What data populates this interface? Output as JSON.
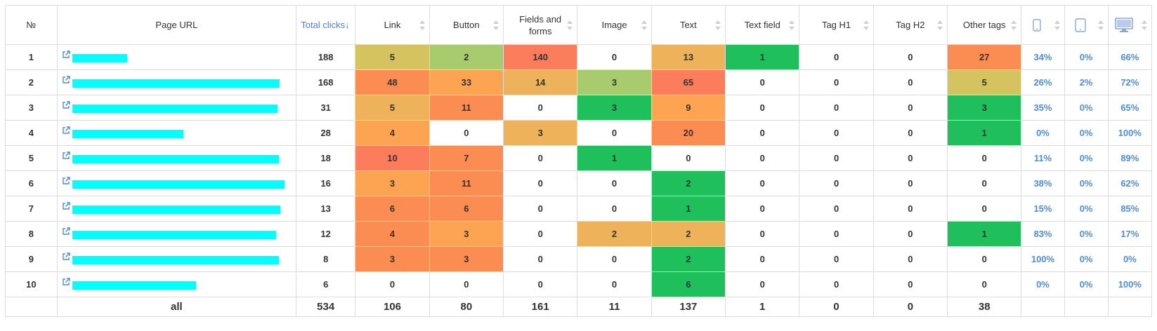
{
  "columns": [
    {
      "key": "num",
      "label": "№"
    },
    {
      "key": "url",
      "label": "Page URL"
    },
    {
      "key": "total",
      "label": "Total clicks"
    },
    {
      "key": "link",
      "label": "Link"
    },
    {
      "key": "button",
      "label": "Button"
    },
    {
      "key": "fields",
      "label": "Fields and forms"
    },
    {
      "key": "image",
      "label": "Image"
    },
    {
      "key": "text",
      "label": "Text"
    },
    {
      "key": "textfield",
      "label": "Text field"
    },
    {
      "key": "h1",
      "label": "Tag H1"
    },
    {
      "key": "h2",
      "label": "Tag H2"
    },
    {
      "key": "other",
      "label": "Other tags"
    },
    {
      "key": "mobile",
      "icon": "mobile-icon"
    },
    {
      "key": "tablet",
      "icon": "tablet-icon"
    },
    {
      "key": "desktop",
      "icon": "desktop-icon"
    }
  ],
  "sorted_by": "Total clicks",
  "sort_direction": "descending",
  "rows": [
    {
      "num": "1",
      "url_redacted": true,
      "total": "188",
      "link": "5",
      "button": "2",
      "fields": "140",
      "image": "0",
      "text": "13",
      "textfield": "1",
      "h1": "0",
      "h2": "0",
      "other": "27",
      "mobile": "34%",
      "tablet": "0%",
      "desktop": "66%",
      "colors": {
        "link": "#d4c35e",
        "button": "#a8cb6e",
        "fields": "#fc7d5c",
        "text": "#edb25a",
        "textfield": "#1fbf5c",
        "other": "#fc8d52"
      }
    },
    {
      "num": "2",
      "url_redacted": true,
      "total": "168",
      "link": "48",
      "button": "33",
      "fields": "14",
      "image": "3",
      "text": "65",
      "textfield": "0",
      "h1": "0",
      "h2": "0",
      "other": "5",
      "mobile": "26%",
      "tablet": "2%",
      "desktop": "72%",
      "colors": {
        "link": "#fc8d52",
        "button": "#fca452",
        "fields": "#edb25a",
        "image": "#a8cb6e",
        "text": "#fc7d5c",
        "other": "#d4c35e"
      }
    },
    {
      "num": "3",
      "url_redacted": true,
      "total": "31",
      "link": "5",
      "button": "11",
      "fields": "0",
      "image": "3",
      "text": "9",
      "textfield": "0",
      "h1": "0",
      "h2": "0",
      "other": "3",
      "mobile": "35%",
      "tablet": "0%",
      "desktop": "65%",
      "colors": {
        "link": "#edb25a",
        "button": "#fc8d52",
        "image": "#1fbf5c",
        "text": "#fca452",
        "other": "#1fbf5c"
      }
    },
    {
      "num": "4",
      "url_redacted": true,
      "total": "28",
      "link": "4",
      "button": "0",
      "fields": "3",
      "image": "0",
      "text": "20",
      "textfield": "0",
      "h1": "0",
      "h2": "0",
      "other": "1",
      "mobile": "0%",
      "tablet": "0%",
      "desktop": "100%",
      "colors": {
        "link": "#fca452",
        "fields": "#edb25a",
        "text": "#fc8d52",
        "other": "#1fbf5c"
      }
    },
    {
      "num": "5",
      "url_redacted": true,
      "total": "18",
      "link": "10",
      "button": "7",
      "fields": "0",
      "image": "1",
      "text": "0",
      "textfield": "0",
      "h1": "0",
      "h2": "0",
      "other": "0",
      "mobile": "11%",
      "tablet": "0%",
      "desktop": "89%",
      "colors": {
        "link": "#fc7d5c",
        "button": "#fc8d52",
        "image": "#1fbf5c"
      }
    },
    {
      "num": "6",
      "url_redacted": true,
      "total": "16",
      "link": "3",
      "button": "11",
      "fields": "0",
      "image": "0",
      "text": "2",
      "textfield": "0",
      "h1": "0",
      "h2": "0",
      "other": "0",
      "mobile": "38%",
      "tablet": "0%",
      "desktop": "62%",
      "colors": {
        "link": "#fca452",
        "button": "#fc8d52",
        "text": "#1fbf5c"
      }
    },
    {
      "num": "7",
      "url_redacted": true,
      "total": "13",
      "link": "6",
      "button": "6",
      "fields": "0",
      "image": "0",
      "text": "1",
      "textfield": "0",
      "h1": "0",
      "h2": "0",
      "other": "0",
      "mobile": "15%",
      "tablet": "0%",
      "desktop": "85%",
      "colors": {
        "link": "#fc8d52",
        "button": "#fc8d52",
        "text": "#1fbf5c"
      }
    },
    {
      "num": "8",
      "url_redacted": true,
      "total": "12",
      "link": "4",
      "button": "3",
      "fields": "0",
      "image": "2",
      "text": "2",
      "textfield": "0",
      "h1": "0",
      "h2": "0",
      "other": "1",
      "mobile": "83%",
      "tablet": "0%",
      "desktop": "17%",
      "colors": {
        "link": "#fc8d52",
        "button": "#fca452",
        "image": "#edb25a",
        "text": "#edb25a",
        "other": "#1fbf5c"
      }
    },
    {
      "num": "9",
      "url_redacted": true,
      "total": "8",
      "link": "3",
      "button": "3",
      "fields": "0",
      "image": "0",
      "text": "2",
      "textfield": "0",
      "h1": "0",
      "h2": "0",
      "other": "0",
      "mobile": "100%",
      "tablet": "0%",
      "desktop": "0%",
      "colors": {
        "link": "#fc8d52",
        "button": "#fc8d52",
        "text": "#1fbf5c"
      }
    },
    {
      "num": "10",
      "url_redacted": true,
      "total": "6",
      "link": "0",
      "button": "0",
      "fields": "0",
      "image": "0",
      "text": "6",
      "textfield": "0",
      "h1": "0",
      "h2": "0",
      "other": "0",
      "mobile": "0%",
      "tablet": "0%",
      "desktop": "100%",
      "colors": {
        "text": "#1fbf5c"
      }
    }
  ],
  "totals": {
    "num": "",
    "url": "all",
    "total": "534",
    "link": "106",
    "button": "80",
    "fields": "161",
    "image": "11",
    "text": "137",
    "textfield": "1",
    "h1": "0",
    "h2": "0",
    "other": "38",
    "mobile": "",
    "tablet": "",
    "desktop": ""
  },
  "colors": {
    "accent": "#4a7fd8",
    "percent": "#4a8fd6",
    "redaction": "#00ffff",
    "grid": "#dcdcdc"
  }
}
